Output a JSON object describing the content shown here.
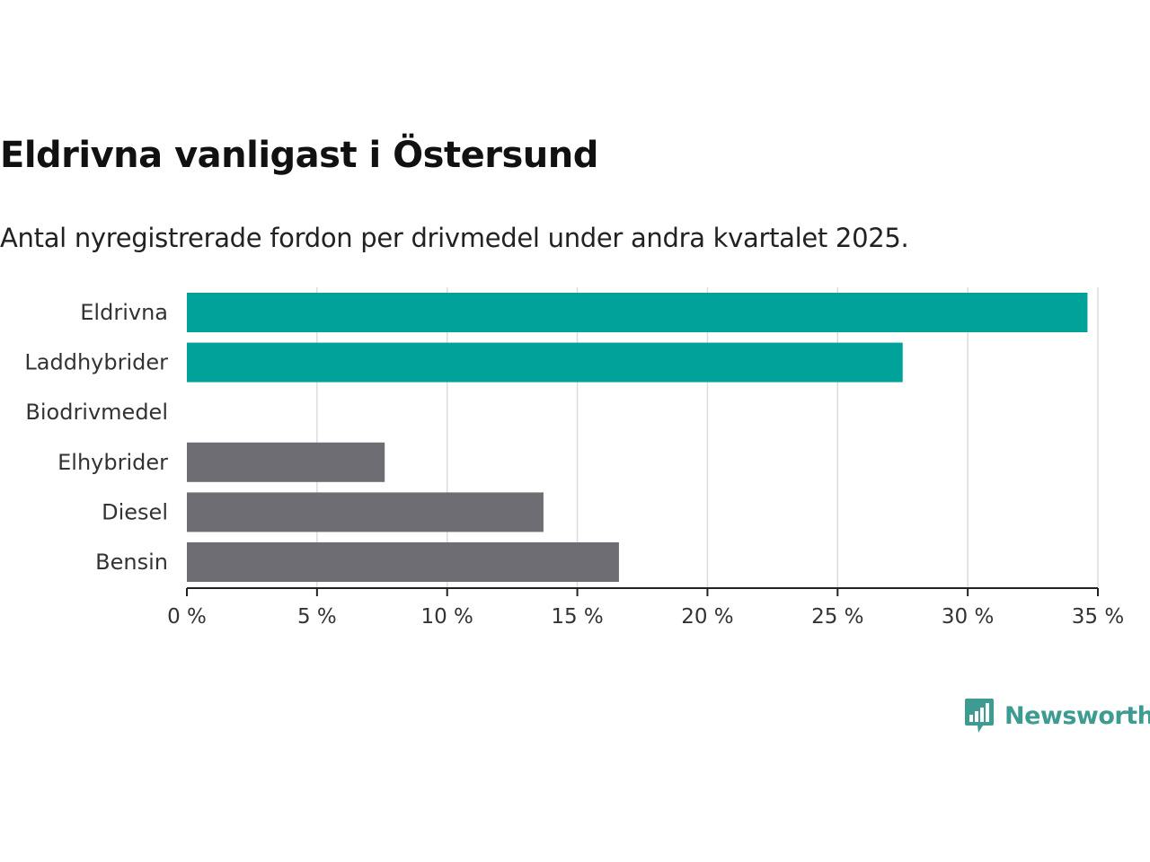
{
  "header": {
    "title": "Eldrivna vanligast i Östersund",
    "subtitle": "Antal nyregistrerade fordon per drivmedel under andra kvartalet 2025."
  },
  "chart_data": {
    "type": "bar",
    "orientation": "horizontal",
    "categories": [
      "Eldrivna",
      "Laddhybrider",
      "Biodrivmedel",
      "Elhybrider",
      "Diesel",
      "Bensin"
    ],
    "values": [
      34.6,
      27.5,
      0,
      7.6,
      13.7,
      16.6
    ],
    "colors": [
      "#00a29a",
      "#00a29a",
      "#00a29a",
      "#6e6d73",
      "#6e6d73",
      "#6e6d73"
    ],
    "xlim": [
      0,
      35
    ],
    "xticks": [
      0,
      5,
      10,
      15,
      20,
      25,
      30,
      35
    ],
    "xtick_labels": [
      "0 %",
      "5 %",
      "10 %",
      "15 %",
      "20 %",
      "25 %",
      "30 %",
      "35 %"
    ],
    "grid": true
  },
  "brand": {
    "name": "Newsworthy",
    "icon": "bar-chart-speech-bubble-icon",
    "color": "#3e9b91"
  }
}
